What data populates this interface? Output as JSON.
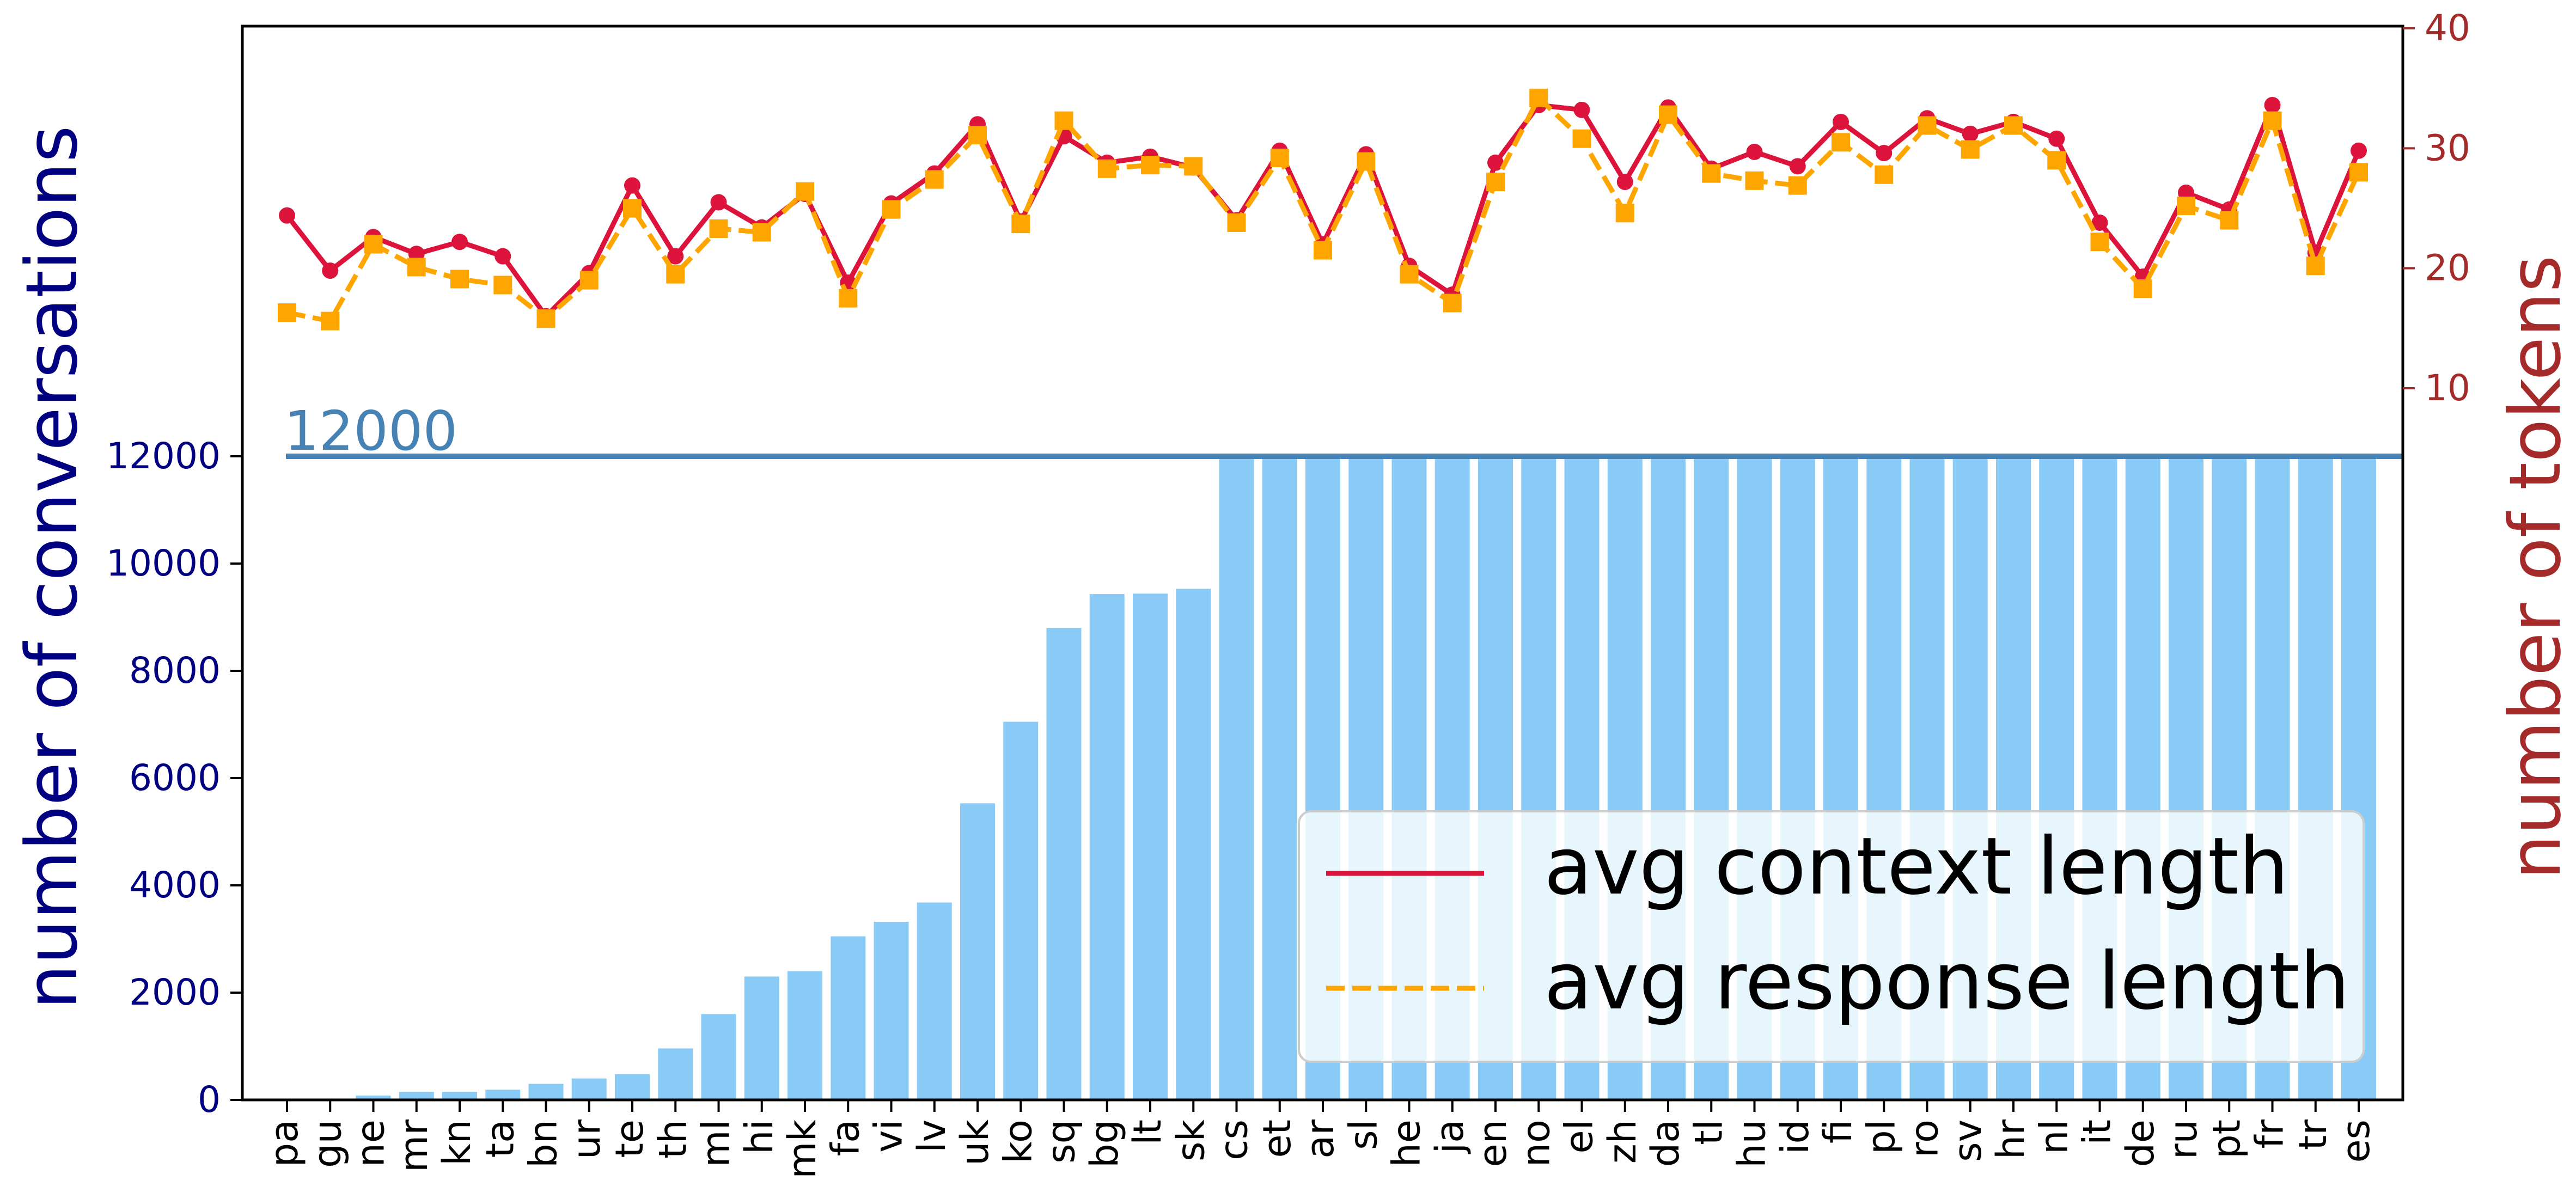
{
  "chart_data": {
    "type": "bar",
    "categories": [
      "pa",
      "gu",
      "ne",
      "mr",
      "kn",
      "ta",
      "bn",
      "ur",
      "te",
      "th",
      "ml",
      "hi",
      "mk",
      "fa",
      "vi",
      "lv",
      "uk",
      "ko",
      "sq",
      "bg",
      "lt",
      "sk",
      "cs",
      "et",
      "ar",
      "sl",
      "he",
      "ja",
      "en",
      "no",
      "el",
      "zh",
      "da",
      "tl",
      "hu",
      "id",
      "fi",
      "pl",
      "ro",
      "sv",
      "hr",
      "nl",
      "it",
      "de",
      "ru",
      "pt",
      "fr",
      "tr",
      "es"
    ],
    "bar_values": [
      10,
      20,
      80,
      150,
      150,
      190,
      300,
      400,
      480,
      960,
      1600,
      2300,
      2400,
      3050,
      3320,
      3680,
      5530,
      7050,
      8800,
      9430,
      9440,
      9530,
      12000,
      12000,
      12000,
      12000,
      12000,
      12000,
      12000,
      12000,
      12000,
      12000,
      12000,
      12000,
      12000,
      12000,
      12000,
      12000,
      12000,
      12000,
      12000,
      12000,
      12000,
      12000,
      12000,
      12000,
      12000,
      12000,
      12000
    ],
    "bar_color": "#89CBF6",
    "ylabel_left": "number of conversations",
    "ylabel_right": "number of tokens",
    "left_axis_color": "#000080",
    "right_axis_color": "#A52A2A",
    "left_ticks": [
      "0",
      "2000",
      "4000",
      "6000",
      "8000",
      "10000",
      "12000"
    ],
    "right_ticks": [
      "10",
      "20",
      "30",
      "40"
    ],
    "left_ylim": [
      0,
      12000
    ],
    "right_ylim": [
      10,
      40
    ],
    "threshold": {
      "value": 12000,
      "label": "12000",
      "color": "#4682B4"
    },
    "series": [
      {
        "name": "avg context length",
        "color": "#DC143C",
        "style": "solid",
        "marker": "circle",
        "values": [
          24.4,
          19.8,
          22.6,
          21.2,
          22.2,
          21.0,
          16.0,
          19.6,
          26.9,
          21.0,
          25.5,
          23.4,
          26.2,
          18.8,
          25.4,
          27.9,
          32.0,
          23.9,
          31.0,
          28.8,
          29.3,
          28.4,
          24.0,
          29.8,
          22.0,
          29.5,
          20.2,
          17.8,
          28.8,
          33.6,
          33.2,
          27.2,
          33.4,
          28.3,
          29.7,
          28.5,
          32.2,
          29.6,
          32.5,
          31.2,
          32.2,
          30.8,
          23.8,
          19.3,
          26.3,
          24.9,
          33.6,
          21.3,
          29.8
        ]
      },
      {
        "name": "avg response length",
        "color": "#FFA500",
        "style": "dashed",
        "marker": "square",
        "values": [
          16.3,
          15.6,
          22.0,
          20.1,
          19.1,
          18.6,
          15.8,
          19.0,
          25.0,
          19.5,
          23.3,
          23.0,
          26.4,
          17.5,
          24.9,
          27.4,
          31.1,
          23.7,
          32.3,
          28.3,
          28.6,
          28.5,
          23.8,
          29.2,
          21.5,
          28.9,
          19.5,
          17.1,
          27.2,
          34.2,
          30.8,
          24.6,
          32.8,
          27.9,
          27.3,
          26.9,
          30.5,
          27.8,
          31.9,
          29.9,
          31.9,
          29.0,
          22.2,
          18.3,
          25.2,
          24.0,
          32.3,
          20.2,
          28.0
        ]
      }
    ]
  }
}
